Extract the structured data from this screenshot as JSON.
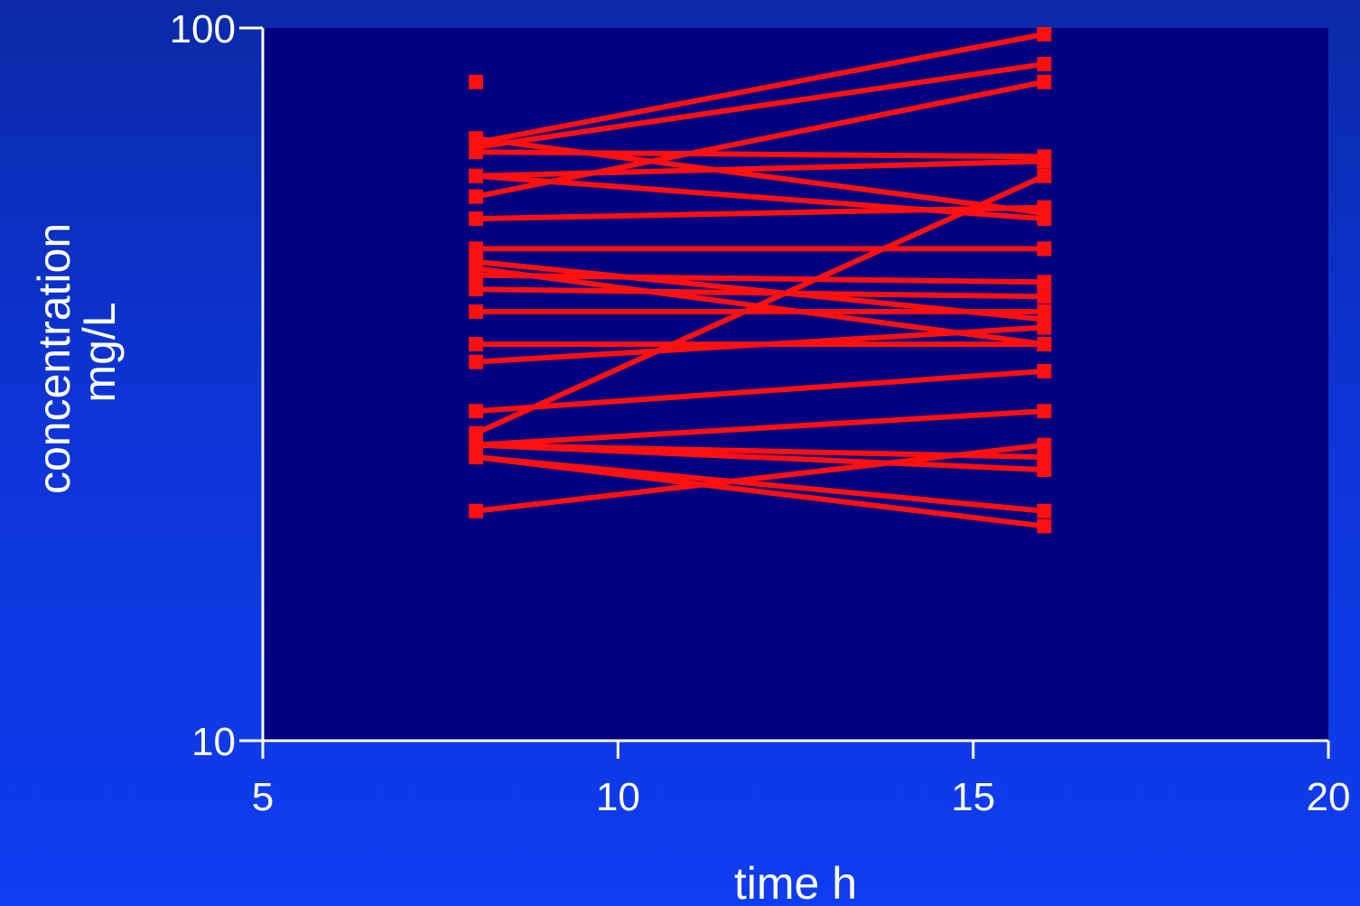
{
  "chart_data": {
    "type": "line",
    "xlabel": "time h",
    "ylabel_lines": [
      "concentration",
      "mg/L"
    ],
    "xlim": [
      5,
      20
    ],
    "ylim": [
      10,
      100
    ],
    "y_scale": "log",
    "x_ticks": [
      5,
      10,
      15,
      20
    ],
    "x_tick_labels": [
      "5",
      "10",
      "15",
      "20"
    ],
    "y_ticks": [
      10,
      100
    ],
    "y_tick_labels": [
      "10",
      "100"
    ],
    "grid": false,
    "colors": {
      "plot_background": "#000080",
      "series": "#ff1010",
      "axis": "#ffffff",
      "text": "#ffffff"
    },
    "lone_points": [
      {
        "x": 8,
        "y": 84
      }
    ],
    "series": [
      {
        "x": [
          8,
          16
        ],
        "y": [
          69,
          98
        ]
      },
      {
        "x": [
          8,
          16
        ],
        "y": [
          68,
          89
        ]
      },
      {
        "x": [
          8,
          16
        ],
        "y": [
          58,
          84
        ]
      },
      {
        "x": [
          8,
          16
        ],
        "y": [
          67,
          66
        ]
      },
      {
        "x": [
          8,
          16
        ],
        "y": [
          70,
          55
        ]
      },
      {
        "x": [
          8,
          16
        ],
        "y": [
          62,
          65
        ]
      },
      {
        "x": [
          8,
          16
        ],
        "y": [
          62,
          54
        ]
      },
      {
        "x": [
          8,
          16
        ],
        "y": [
          54,
          56
        ]
      },
      {
        "x": [
          8,
          16
        ],
        "y": [
          49,
          49
        ]
      },
      {
        "x": [
          8,
          16
        ],
        "y": [
          45,
          44
        ]
      },
      {
        "x": [
          8,
          16
        ],
        "y": [
          47,
          39
        ]
      },
      {
        "x": [
          8,
          16
        ],
        "y": [
          43,
          42
        ]
      },
      {
        "x": [
          8,
          16
        ],
        "y": [
          40,
          40
        ]
      },
      {
        "x": [
          8,
          16
        ],
        "y": [
          36,
          36
        ]
      },
      {
        "x": [
          8,
          16
        ],
        "y": [
          46,
          36
        ]
      },
      {
        "x": [
          8,
          16
        ],
        "y": [
          34,
          38
        ]
      },
      {
        "x": [
          8,
          16
        ],
        "y": [
          29,
          33
        ]
      },
      {
        "x": [
          8,
          16
        ],
        "y": [
          27,
          62
        ]
      },
      {
        "x": [
          8,
          16
        ],
        "y": [
          26,
          29
        ]
      },
      {
        "x": [
          8,
          16
        ],
        "y": [
          26,
          25
        ]
      },
      {
        "x": [
          8,
          16
        ],
        "y": [
          26,
          24
        ]
      },
      {
        "x": [
          8,
          16
        ],
        "y": [
          25,
          21
        ]
      },
      {
        "x": [
          8,
          16
        ],
        "y": [
          21,
          26
        ]
      },
      {
        "x": [
          8,
          16
        ],
        "y": [
          25,
          20
        ]
      }
    ]
  }
}
